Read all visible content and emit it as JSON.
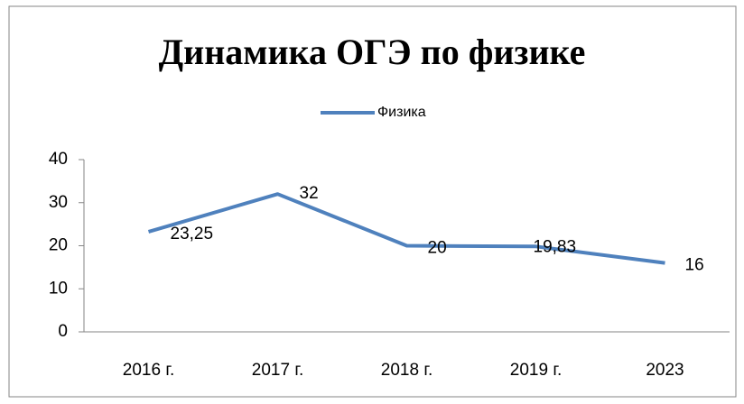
{
  "chart_data": {
    "type": "line",
    "title": "Динамика ОГЭ по физике",
    "categories": [
      "2016 г.",
      "2017 г.",
      "2018 г.",
      "2019 г.",
      "2023"
    ],
    "series": [
      {
        "name": "Физика",
        "color": "#4f81bd",
        "values": [
          23.25,
          32,
          20,
          19.83,
          16
        ],
        "value_labels": [
          "23,25",
          "32",
          "20",
          "19,83",
          "16"
        ]
      }
    ],
    "ylim": [
      0,
      40
    ],
    "yticks": [
      0,
      10,
      20,
      30,
      40
    ],
    "grid": false,
    "legend": "top"
  }
}
